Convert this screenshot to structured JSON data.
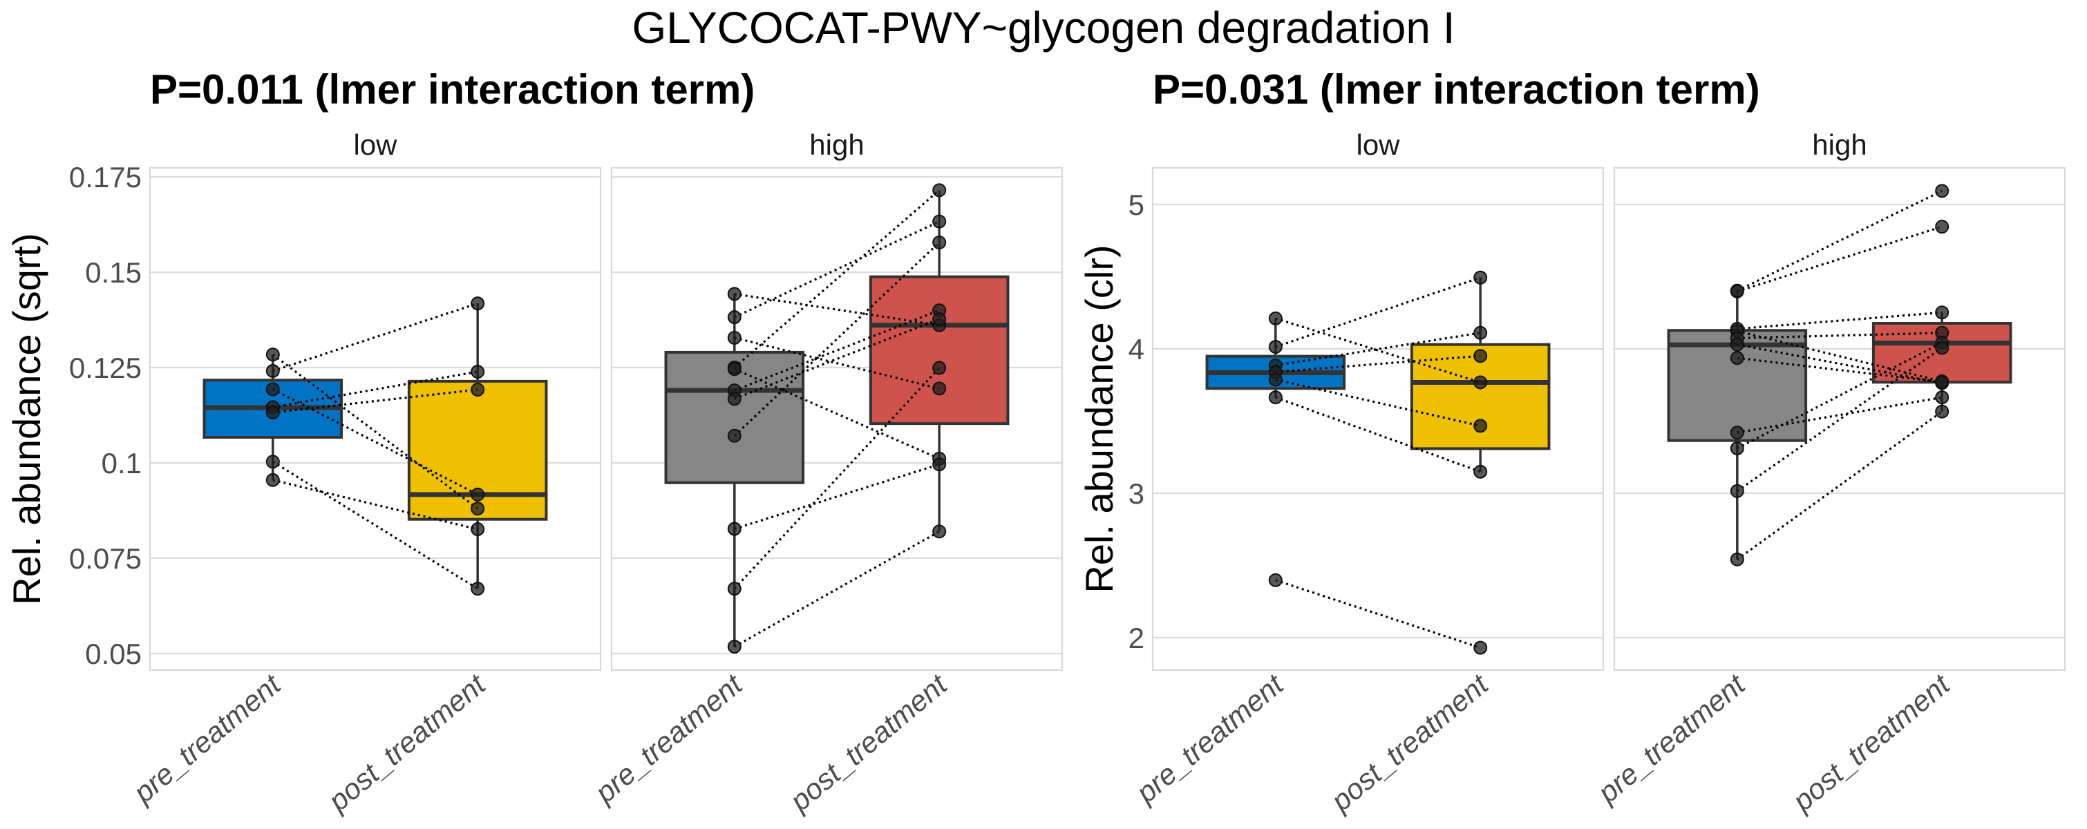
{
  "figure": {
    "title": "GLYCOCAT-PWY~glycogen degradation I"
  },
  "chart_data": [
    {
      "type": "box",
      "subtitle": "P=0.011 (lmer interaction term)",
      "ylabel": "Rel. abundance (sqrt)",
      "xlabel": "",
      "ylim": [
        0.0465,
        0.177
      ],
      "yticks": [
        0.05,
        0.075,
        0.1,
        0.125,
        0.15,
        0.175
      ],
      "ytick_labels": [
        "0.05",
        "0.075",
        "0.1",
        "0.125",
        "0.15",
        "0.175"
      ],
      "grid": true,
      "categories": [
        "pre_treatment",
        "post_treatment"
      ],
      "facets": [
        {
          "strip": "low",
          "groups": [
            {
              "category": "pre_treatment",
              "color": "#0073C2",
              "box": {
                "min": 0.0955,
                "q1": 0.1067,
                "median": 0.1145,
                "q3": 0.1217,
                "max": 0.1284
              },
              "points": [
                0.1284,
                0.1241,
                0.1193,
                0.1146,
                0.1132,
                0.1003,
                0.0955
              ]
            },
            {
              "category": "post_treatment",
              "color": "#EFC000",
              "box": {
                "min": 0.067,
                "q1": 0.0852,
                "median": 0.0917,
                "q3": 0.1214,
                "max": 0.1418
              },
              "points": [
                0.088,
                0.1418,
                0.0917,
                0.1239,
                0.1192,
                0.067,
                0.0826
              ]
            }
          ]
        },
        {
          "strip": "high",
          "groups": [
            {
              "category": "pre_treatment",
              "color": "#868686",
              "box": {
                "min": 0.0518,
                "q1": 0.0948,
                "median": 0.119,
                "q3": 0.129,
                "max": 0.1443
              },
              "points": [
                0.1443,
                0.1382,
                0.1328,
                0.125,
                0.1246,
                0.119,
                0.1168,
                0.1071,
                0.0827,
                0.067,
                0.0518
              ]
            },
            {
              "category": "post_treatment",
              "color": "#CD534C",
              "box": {
                "min": 0.082,
                "q1": 0.1103,
                "median": 0.1361,
                "q3": 0.1488,
                "max": 0.1715
              },
              "points": [
                0.1361,
                0.1633,
                0.1195,
                0.1715,
                0.1011,
                0.14,
                0.1377,
                0.1578,
                0.0996,
                0.1249,
                0.082
              ]
            }
          ]
        }
      ]
    },
    {
      "type": "box",
      "subtitle": "P=0.031 (lmer interaction term)",
      "ylabel": "Rel. abundance (clr)",
      "xlabel": "",
      "ylim": [
        1.775,
        5.25
      ],
      "yticks": [
        2,
        3,
        4,
        5
      ],
      "ytick_labels": [
        "2",
        "3",
        "4",
        "5"
      ],
      "grid": true,
      "categories": [
        "pre_treatment",
        "post_treatment"
      ],
      "facets": [
        {
          "strip": "low",
          "groups": [
            {
              "category": "pre_treatment",
              "color": "#0073C2",
              "box": {
                "min": 3.664,
                "q1": 3.726,
                "median": 3.835,
                "q3": 3.949,
                "max": 4.211
              },
              "points": [
                4.211,
                4.014,
                3.886,
                3.84,
                3.787,
                3.664,
                2.398
              ]
            },
            {
              "category": "post_treatment",
              "color": "#EFC000",
              "box": {
                "min": 3.149,
                "q1": 3.309,
                "median": 3.768,
                "q3": 4.03,
                "max": 4.494
              },
              "points": [
                3.768,
                4.494,
                4.111,
                3.951,
                3.467,
                3.149,
                1.93
              ]
            }
          ]
        },
        {
          "strip": "high",
          "groups": [
            {
              "category": "pre_treatment",
              "color": "#868686",
              "box": {
                "min": 2.542,
                "q1": 3.365,
                "median": 4.028,
                "q3": 4.128,
                "max": 4.403
              },
              "points": [
                4.403,
                4.398,
                4.139,
                4.123,
                4.074,
                4.03,
                3.937,
                3.42,
                3.311,
                3.015,
                2.542
              ]
            },
            {
              "category": "post_treatment",
              "color": "#CD534C",
              "box": {
                "min": 3.566,
                "q1": 3.769,
                "median": 4.04,
                "q3": 4.177,
                "max": 4.252
              },
              "points": [
                5.094,
                4.846,
                4.252,
                3.775,
                4.111,
                3.764,
                3.77,
                3.664,
                4.043,
                4.007,
                3.566
              ]
            }
          ]
        }
      ]
    }
  ]
}
